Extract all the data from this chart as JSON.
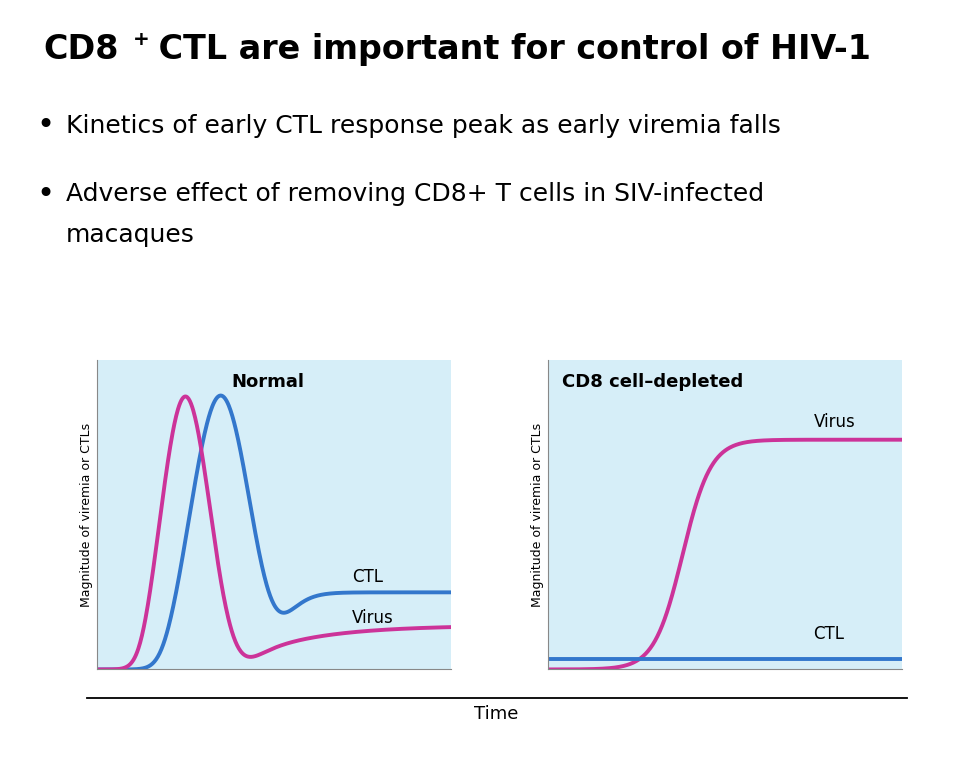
{
  "title_text": "CD8",
  "title_super": "+",
  "title_suffix": " CTL are important for control of HIV-1",
  "bullet1": "Kinetics of early CTL response peak as early viremia falls",
  "bullet2a": "Adverse effect of removing CD8+ T cells in SIV-infected",
  "bullet2b": "macaques",
  "plot1_title": "Normal",
  "plot2_title": "CD8 cell–depleted",
  "ylabel": "Magnitude of viremia or CTLs",
  "xlabel": "Time",
  "bg_color": "#d6eef8",
  "virus_color": "#cc3399",
  "ctl_color": "#3377cc",
  "title_fontsize": 24,
  "bullet_fontsize": 18,
  "axis_label_fontsize": 9,
  "plot_title_fontsize": 13,
  "label_fontsize": 12
}
